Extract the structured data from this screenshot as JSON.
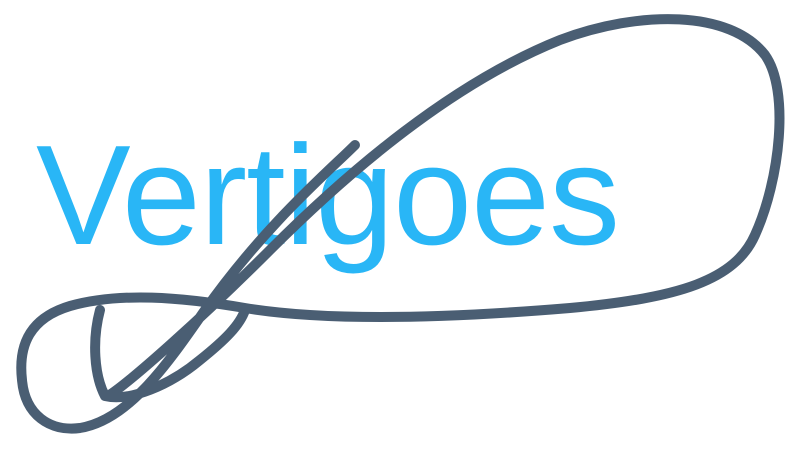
{
  "logo": {
    "wordmark": "Vertigoes",
    "wordmark_color": "#29b6f6",
    "loop_color": "#4a5e73",
    "background_color": "#ffffff"
  }
}
